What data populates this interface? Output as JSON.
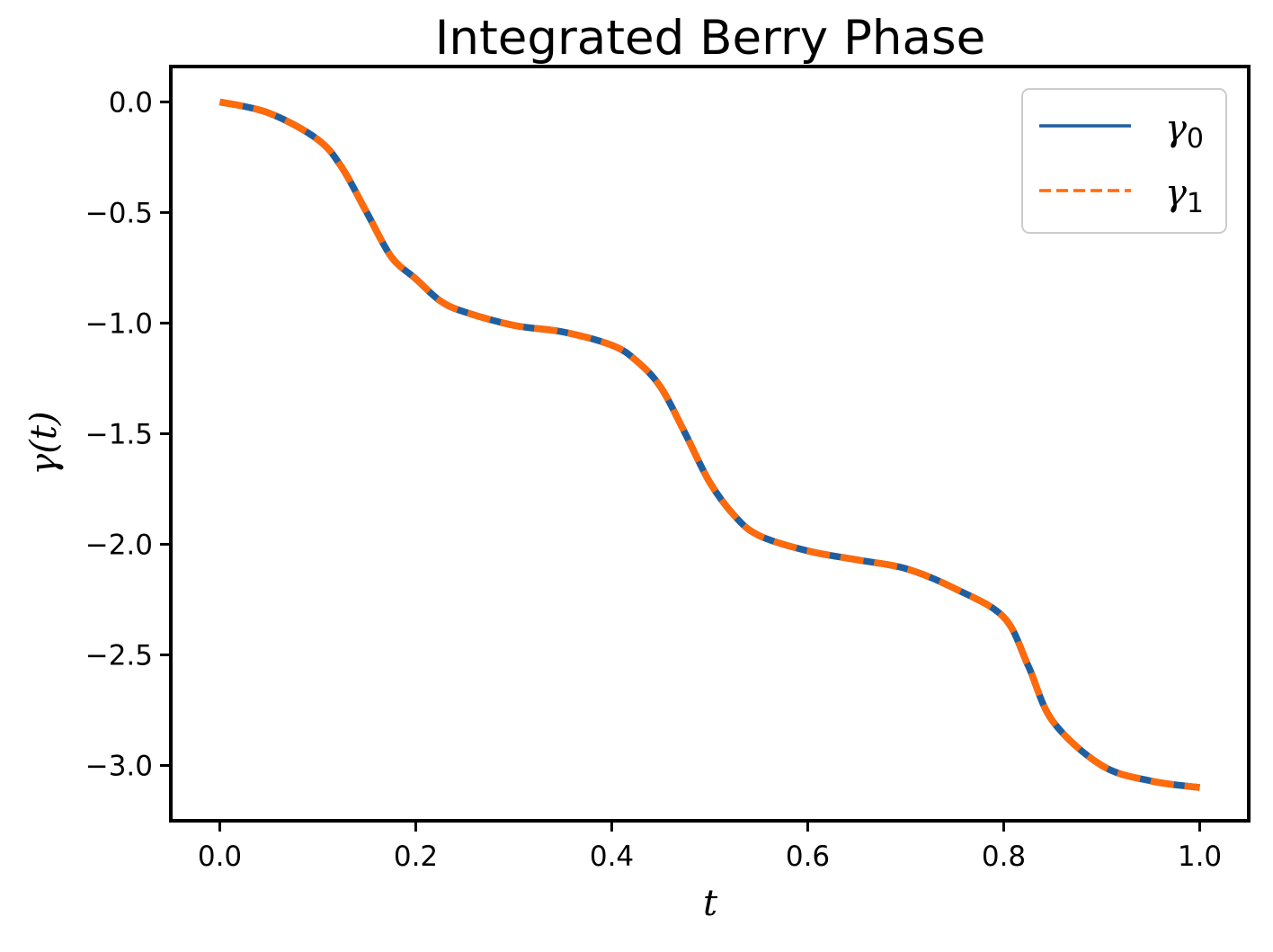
{
  "chart_data": {
    "type": "line",
    "title": "Integrated Berry Phase",
    "xlabel": "t",
    "ylabel": "γ(t)",
    "xlim": [
      -0.05,
      1.05
    ],
    "ylim": [
      -3.25,
      0.16
    ],
    "xticks": [
      0.0,
      0.2,
      0.4,
      0.6,
      0.8,
      1.0
    ],
    "xtick_labels": [
      "0.0",
      "0.2",
      "0.4",
      "0.6",
      "0.8",
      "1.0"
    ],
    "yticks": [
      0.0,
      -0.5,
      -1.0,
      -1.5,
      -2.0,
      -2.5,
      -3.0
    ],
    "ytick_labels": [
      "0.0",
      "−0.5",
      "−1.0",
      "−1.5",
      "−2.0",
      "−2.5",
      "−3.0"
    ],
    "grid": false,
    "legend_position": "top-right",
    "x": [
      0.0,
      0.05,
      0.1,
      0.125,
      0.15,
      0.175,
      0.2,
      0.225,
      0.25,
      0.3,
      0.35,
      0.4,
      0.425,
      0.45,
      0.475,
      0.5,
      0.525,
      0.55,
      0.6,
      0.65,
      0.7,
      0.75,
      0.8,
      0.825,
      0.85,
      0.9,
      0.95,
      1.0
    ],
    "series": [
      {
        "name_main": "γ",
        "name_sub": "0",
        "color": "#1f5fa0",
        "style": "solid",
        "values": [
          0.0,
          -0.05,
          -0.17,
          -0.3,
          -0.5,
          -0.7,
          -0.8,
          -0.9,
          -0.95,
          -1.01,
          -1.04,
          -1.1,
          -1.17,
          -1.29,
          -1.5,
          -1.72,
          -1.87,
          -1.96,
          -2.03,
          -2.07,
          -2.11,
          -2.2,
          -2.33,
          -2.55,
          -2.8,
          -3.0,
          -3.07,
          -3.1
        ]
      },
      {
        "name_main": "γ",
        "name_sub": "1",
        "color": "#ff6a0a",
        "style": "dashed",
        "values": [
          0.0,
          -0.05,
          -0.17,
          -0.3,
          -0.5,
          -0.7,
          -0.8,
          -0.9,
          -0.95,
          -1.01,
          -1.04,
          -1.1,
          -1.17,
          -1.29,
          -1.5,
          -1.72,
          -1.87,
          -1.96,
          -2.03,
          -2.07,
          -2.11,
          -2.2,
          -2.33,
          -2.55,
          -2.8,
          -3.0,
          -3.07,
          -3.1
        ]
      }
    ]
  }
}
